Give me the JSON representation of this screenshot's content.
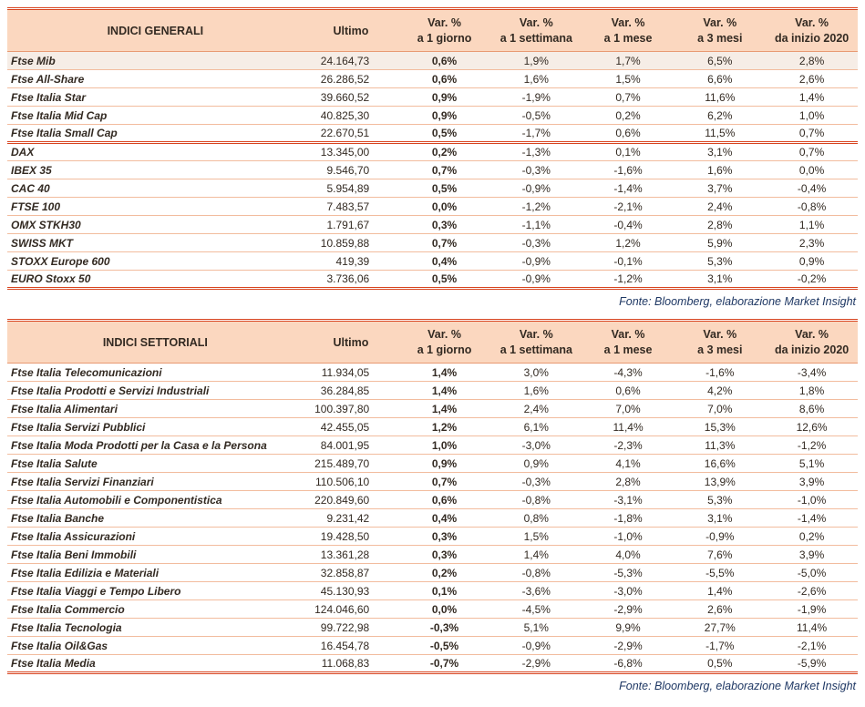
{
  "colors": {
    "header_bg": "#fbd7bf",
    "rule_strong": "#d8441f",
    "rule_mid": "#e89a72",
    "rule_light": "#f2bc9e",
    "text": "#332a22",
    "fonte_text": "#1f3864",
    "highlight_bg": "#f6ede6"
  },
  "tables": [
    {
      "title": "INDICI GENERALI",
      "ultimo_header": "Ultimo",
      "var_header_top": "Var. %",
      "var_headers_sub": [
        "a 1 giorno",
        "a 1 settimana",
        "a 1 mese",
        "a 3 mesi",
        "da inizio 2020"
      ],
      "fonte": "Fonte: Bloomberg, elaborazione Market Insight",
      "groups": [
        {
          "rows": [
            {
              "name": "Ftse Mib",
              "ultimo": "24.164,73",
              "vars": [
                "0,6%",
                "1,9%",
                "1,7%",
                "6,5%",
                "2,8%"
              ],
              "highlight": true
            },
            {
              "name": "Ftse All-Share",
              "ultimo": "26.286,52",
              "vars": [
                "0,6%",
                "1,6%",
                "1,5%",
                "6,6%",
                "2,6%"
              ]
            },
            {
              "name": "Ftse Italia Star",
              "ultimo": "39.660,52",
              "vars": [
                "0,9%",
                "-1,9%",
                "0,7%",
                "11,6%",
                "1,4%"
              ]
            },
            {
              "name": "Ftse Italia Mid Cap",
              "ultimo": "40.825,30",
              "vars": [
                "0,9%",
                "-0,5%",
                "0,2%",
                "6,2%",
                "1,0%"
              ]
            },
            {
              "name": "Ftse Italia Small Cap",
              "ultimo": "22.670,51",
              "vars": [
                "0,5%",
                "-1,7%",
                "0,6%",
                "11,5%",
                "0,7%"
              ]
            }
          ]
        },
        {
          "rows": [
            {
              "name": "DAX",
              "ultimo": "13.345,00",
              "vars": [
                "0,2%",
                "-1,3%",
                "0,1%",
                "3,1%",
                "0,7%"
              ]
            },
            {
              "name": "IBEX 35",
              "ultimo": "9.546,70",
              "vars": [
                "0,7%",
                "-0,3%",
                "-1,6%",
                "1,6%",
                "0,0%"
              ]
            },
            {
              "name": "CAC 40",
              "ultimo": "5.954,89",
              "vars": [
                "0,5%",
                "-0,9%",
                "-1,4%",
                "3,7%",
                "-0,4%"
              ]
            },
            {
              "name": "FTSE 100",
              "ultimo": "7.483,57",
              "vars": [
                "0,0%",
                "-1,2%",
                "-2,1%",
                "2,4%",
                "-0,8%"
              ]
            },
            {
              "name": "OMX STKH30",
              "ultimo": "1.791,67",
              "vars": [
                "0,3%",
                "-1,1%",
                "-0,4%",
                "2,8%",
                "1,1%"
              ]
            },
            {
              "name": "SWISS MKT",
              "ultimo": "10.859,88",
              "vars": [
                "0,7%",
                "-0,3%",
                "1,2%",
                "5,9%",
                "2,3%"
              ]
            },
            {
              "name": "STOXX Europe 600",
              "ultimo": "419,39",
              "vars": [
                "0,4%",
                "-0,9%",
                "-0,1%",
                "5,3%",
                "0,9%"
              ]
            },
            {
              "name": "EURO Stoxx 50",
              "ultimo": "3.736,06",
              "vars": [
                "0,5%",
                "-0,9%",
                "-1,2%",
                "3,1%",
                "-0,2%"
              ]
            }
          ]
        }
      ]
    },
    {
      "title": "INDICI SETTORIALI",
      "ultimo_header": "Ultimo",
      "var_header_top": "Var. %",
      "var_headers_sub": [
        "a 1 giorno",
        "a 1 settimana",
        "a 1 mese",
        "a 3 mesi",
        "da inizio 2020"
      ],
      "fonte": "Fonte: Bloomberg, elaborazione Market Insight",
      "groups": [
        {
          "rows": [
            {
              "name": "Ftse Italia Telecomunicazioni",
              "ultimo": "11.934,05",
              "vars": [
                "1,4%",
                "3,0%",
                "-4,3%",
                "-1,6%",
                "-3,4%"
              ]
            },
            {
              "name": "Ftse Italia Prodotti e Servizi Industriali",
              "ultimo": "36.284,85",
              "vars": [
                "1,4%",
                "1,6%",
                "0,6%",
                "4,2%",
                "1,8%"
              ]
            },
            {
              "name": "Ftse Italia Alimentari",
              "ultimo": "100.397,80",
              "vars": [
                "1,4%",
                "2,4%",
                "7,0%",
                "7,0%",
                "8,6%"
              ]
            },
            {
              "name": "Ftse Italia Servizi Pubblici",
              "ultimo": "42.455,05",
              "vars": [
                "1,2%",
                "6,1%",
                "11,4%",
                "15,3%",
                "12,6%"
              ]
            },
            {
              "name": "Ftse Italia Moda Prodotti per la Casa e la Persona",
              "ultimo": "84.001,95",
              "vars": [
                "1,0%",
                "-3,0%",
                "-2,3%",
                "11,3%",
                "-1,2%"
              ]
            },
            {
              "name": "Ftse Italia Salute",
              "ultimo": "215.489,70",
              "vars": [
                "0,9%",
                "0,9%",
                "4,1%",
                "16,6%",
                "5,1%"
              ]
            },
            {
              "name": "Ftse Italia Servizi Finanziari",
              "ultimo": "110.506,10",
              "vars": [
                "0,7%",
                "-0,3%",
                "2,8%",
                "13,9%",
                "3,9%"
              ]
            },
            {
              "name": "Ftse Italia Automobili e Componentistica",
              "ultimo": "220.849,60",
              "vars": [
                "0,6%",
                "-0,8%",
                "-3,1%",
                "5,3%",
                "-1,0%"
              ]
            },
            {
              "name": "Ftse Italia Banche",
              "ultimo": "9.231,42",
              "vars": [
                "0,4%",
                "0,8%",
                "-1,8%",
                "3,1%",
                "-1,4%"
              ]
            },
            {
              "name": "Ftse Italia Assicurazioni",
              "ultimo": "19.428,50",
              "vars": [
                "0,3%",
                "1,5%",
                "-1,0%",
                "-0,9%",
                "0,2%"
              ]
            },
            {
              "name": "Ftse Italia Beni Immobili",
              "ultimo": "13.361,28",
              "vars": [
                "0,3%",
                "1,4%",
                "4,0%",
                "7,6%",
                "3,9%"
              ]
            },
            {
              "name": "Ftse Italia Edilizia e Materiali",
              "ultimo": "32.858,87",
              "vars": [
                "0,2%",
                "-0,8%",
                "-5,3%",
                "-5,5%",
                "-5,0%"
              ]
            },
            {
              "name": "Ftse Italia Viaggi e Tempo Libero",
              "ultimo": "45.130,93",
              "vars": [
                "0,1%",
                "-3,6%",
                "-3,0%",
                "1,4%",
                "-2,6%"
              ]
            },
            {
              "name": "Ftse Italia Commercio",
              "ultimo": "124.046,60",
              "vars": [
                "0,0%",
                "-4,5%",
                "-2,9%",
                "2,6%",
                "-1,9%"
              ]
            },
            {
              "name": "Ftse Italia Tecnologia",
              "ultimo": "99.722,98",
              "vars": [
                "-0,3%",
                "5,1%",
                "9,9%",
                "27,7%",
                "11,4%"
              ]
            },
            {
              "name": "Ftse Italia Oil&Gas",
              "ultimo": "16.454,78",
              "vars": [
                "-0,5%",
                "-0,9%",
                "-2,9%",
                "-1,7%",
                "-2,1%"
              ]
            },
            {
              "name": "Ftse Italia Media",
              "ultimo": "11.068,83",
              "vars": [
                "-0,7%",
                "-2,9%",
                "-6,8%",
                "0,5%",
                "-5,9%"
              ]
            }
          ]
        }
      ]
    }
  ]
}
